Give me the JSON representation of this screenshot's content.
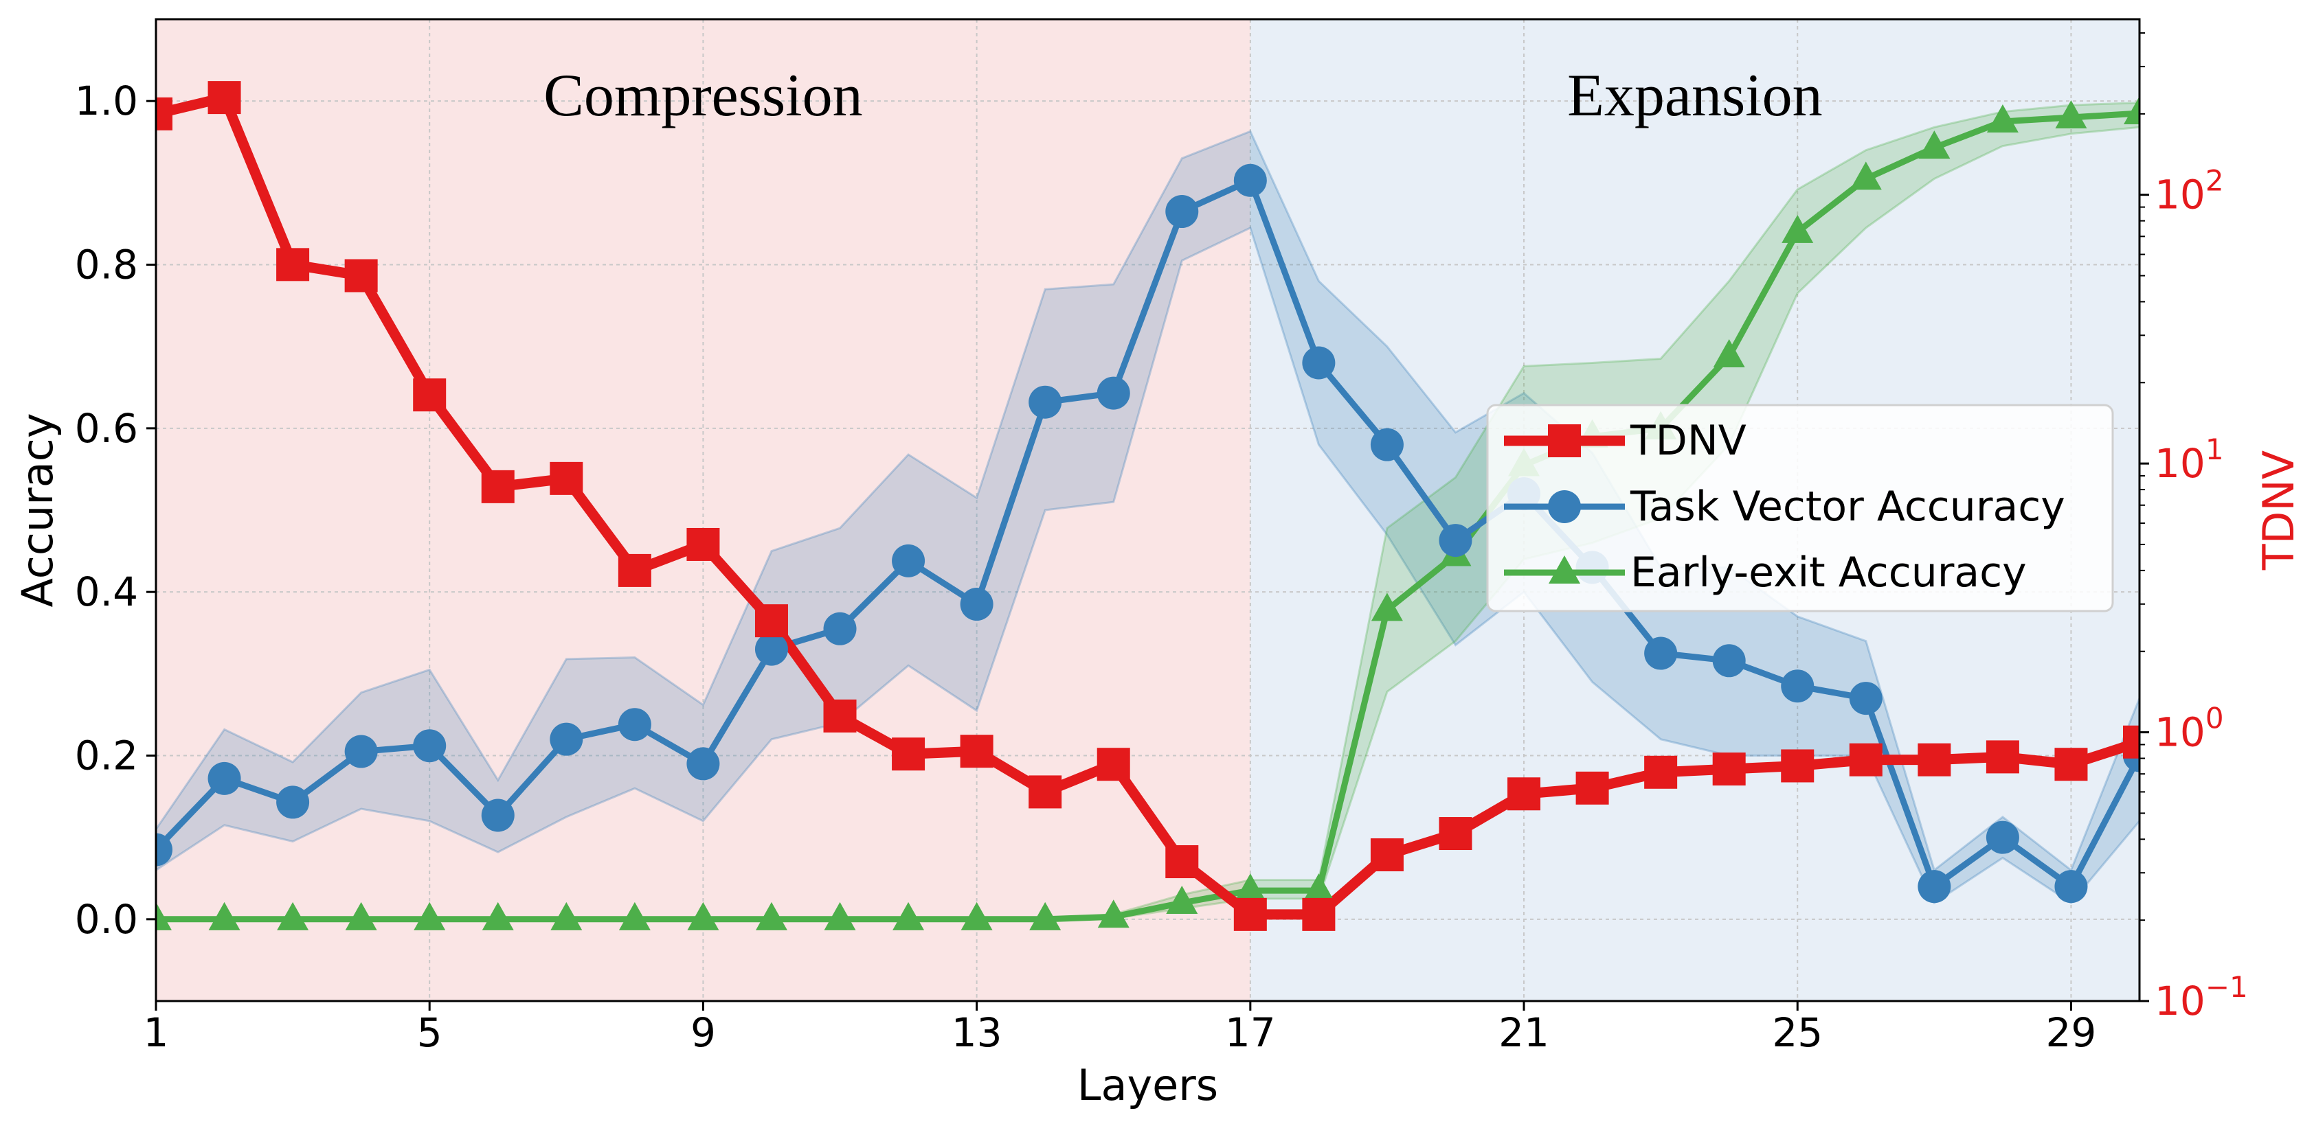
{
  "chart_data": {
    "type": "line",
    "xlabel": "Layers",
    "ylabel_left": "Accuracy",
    "ylabel_right": "TDNV",
    "xlim": [
      1,
      30
    ],
    "ylim_left": [
      -0.1,
      1.1
    ],
    "ylim_right": [
      0.1,
      450
    ],
    "right_axis_scale": "log",
    "grid": true,
    "legend_position": "center-right",
    "x_ticks": [
      1,
      5,
      9,
      13,
      17,
      21,
      25,
      29
    ],
    "x_tick_labels": [
      "1",
      "5",
      "9",
      "13",
      "17",
      "21",
      "25",
      "29"
    ],
    "y_left_ticks": [
      0.0,
      0.2,
      0.4,
      0.6,
      0.8,
      1.0
    ],
    "y_left_tick_labels": [
      "0.0",
      "0.2",
      "0.4",
      "0.6",
      "0.8",
      "1.0"
    ],
    "y_right_ticks": [
      0.1,
      1,
      10,
      100
    ],
    "y_right_tick_base": "10",
    "y_right_tick_exponents": [
      "−1",
      "0",
      "1",
      "2"
    ],
    "regions": [
      {
        "label": "Compression",
        "x_start": 1,
        "x_end": 17,
        "color": "#fae5e5"
      },
      {
        "label": "Expansion",
        "x_start": 17,
        "x_end": 30,
        "color": "#e8eff7"
      }
    ],
    "x": [
      1,
      2,
      3,
      4,
      5,
      6,
      7,
      8,
      9,
      10,
      11,
      12,
      13,
      14,
      15,
      16,
      17,
      18,
      19,
      20,
      21,
      22,
      23,
      24,
      25,
      26,
      27,
      28,
      29,
      30
    ],
    "series": [
      {
        "name": "TDNV",
        "axis": "right",
        "marker": "square",
        "color": "#e41a1c",
        "values": [
          200,
          230,
          55,
          50,
          18,
          8.2,
          8.8,
          4.0,
          5.0,
          2.6,
          1.15,
          0.83,
          0.85,
          0.6,
          0.76,
          0.33,
          0.21,
          0.21,
          0.35,
          0.42,
          0.59,
          0.62,
          0.71,
          0.73,
          0.75,
          0.79,
          0.79,
          0.81,
          0.76,
          0.92
        ]
      },
      {
        "name": "Task Vector Accuracy",
        "axis": "left",
        "marker": "circle",
        "color": "#377eb8",
        "values": [
          0.085,
          0.172,
          0.143,
          0.205,
          0.212,
          0.127,
          0.22,
          0.238,
          0.19,
          0.33,
          0.355,
          0.438,
          0.385,
          0.632,
          0.643,
          0.865,
          0.903,
          0.68,
          0.58,
          0.463,
          0.52,
          0.43,
          0.325,
          0.316,
          0.285,
          0.27,
          0.04,
          0.1,
          0.04,
          0.2
        ],
        "band_lower": [
          0.06,
          0.115,
          0.095,
          0.135,
          0.12,
          0.082,
          0.125,
          0.16,
          0.12,
          0.22,
          0.24,
          0.31,
          0.255,
          0.5,
          0.51,
          0.805,
          0.845,
          0.58,
          0.47,
          0.335,
          0.4,
          0.29,
          0.22,
          0.2,
          0.2,
          0.2,
          0.02,
          0.075,
          0.02,
          0.12
        ],
        "band_upper": [
          0.11,
          0.232,
          0.192,
          0.277,
          0.305,
          0.17,
          0.318,
          0.32,
          0.262,
          0.45,
          0.478,
          0.568,
          0.515,
          0.77,
          0.776,
          0.93,
          0.963,
          0.78,
          0.7,
          0.595,
          0.643,
          0.57,
          0.43,
          0.43,
          0.37,
          0.34,
          0.06,
          0.125,
          0.06,
          0.27
        ]
      },
      {
        "name": "Early-exit Accuracy",
        "axis": "left",
        "marker": "triangle",
        "color": "#4daf4a",
        "values": [
          0,
          0,
          0,
          0,
          0,
          0,
          0,
          0,
          0,
          0,
          0,
          0,
          0,
          0,
          0.003,
          0.02,
          0.035,
          0.035,
          0.378,
          0.445,
          0.555,
          0.59,
          0.6,
          0.688,
          0.84,
          0.905,
          0.943,
          0.975,
          0.98,
          0.985
        ],
        "band_lower": [
          0,
          0,
          0,
          0,
          0,
          0,
          0,
          0,
          0,
          0,
          0,
          0,
          0,
          0,
          0.001,
          0.013,
          0.025,
          0.025,
          0.278,
          0.34,
          0.44,
          0.46,
          0.49,
          0.58,
          0.765,
          0.845,
          0.905,
          0.945,
          0.96,
          0.968
        ],
        "band_upper": [
          0,
          0,
          0,
          0,
          0,
          0,
          0,
          0,
          0,
          0,
          0,
          0,
          0,
          0,
          0.006,
          0.03,
          0.048,
          0.048,
          0.478,
          0.54,
          0.676,
          0.68,
          0.685,
          0.78,
          0.892,
          0.94,
          0.968,
          0.987,
          0.995,
          0.998
        ]
      }
    ]
  }
}
